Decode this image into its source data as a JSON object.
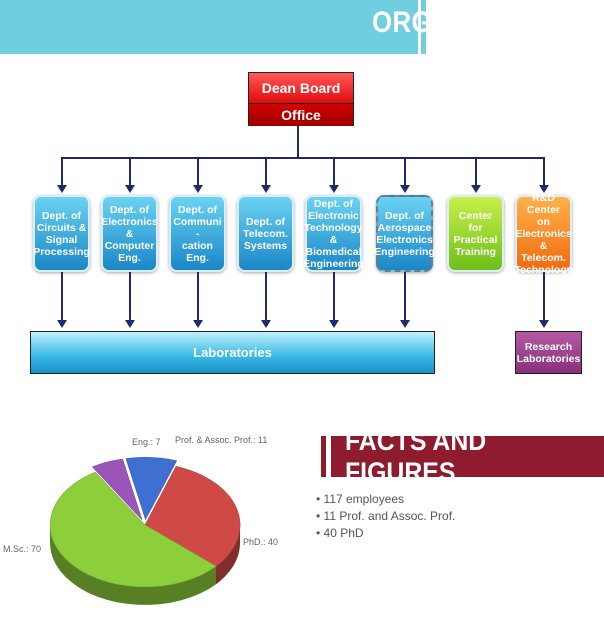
{
  "header": {
    "title": "ORGANIZATION"
  },
  "dean": {
    "top": "Dean Board",
    "bottom": "Office"
  },
  "departments": [
    {
      "label": "Dept. of\nCircuits &\nSignal\nProcessing",
      "color": "blue"
    },
    {
      "label": "Dept. of\nElectronics\n&\nComputer\nEng.",
      "color": "blue"
    },
    {
      "label": "Dept. of\nCommuni -\ncation Eng.",
      "color": "blue"
    },
    {
      "label": "Dept. of\nTelecom.\nSystems",
      "color": "blue"
    },
    {
      "label": "Dept. of\nElectronic\nTechnology\n& Biomedical\nEngineering",
      "color": "blue"
    },
    {
      "label": "Dept. of\nAerospace\nElectronics\nEngineering",
      "color": "blue"
    },
    {
      "label": "Center for\nPractical\nTraining",
      "color": "green"
    },
    {
      "label": "R&D Center\non\nElectronics &\nTelecom.\nTechnology",
      "color": "orange"
    }
  ],
  "laboratories": {
    "label": "Laboratories"
  },
  "research": {
    "label": "Research\nLaboratories"
  },
  "facts": {
    "title": "FACTS AND FIGURES",
    "items": [
      "117 employees",
      "11 Prof. and Assoc. Prof.",
      "40 PhD"
    ]
  },
  "chart_data": {
    "type": "pie",
    "slices": [
      {
        "label": "M.Sc.: 70",
        "name": "M.Sc.",
        "value": 70,
        "color": "#8ccf3a"
      },
      {
        "label": "PhD.: 40",
        "name": "PhD.",
        "value": 40,
        "color": "#cf4a46"
      },
      {
        "label": "Prof. & Assoc. Prof.: 11",
        "name": "Prof. & Assoc. Prof.",
        "value": 11,
        "color": "#3f6fd0"
      },
      {
        "label": "Eng.: 7",
        "name": "Eng.",
        "value": 7,
        "color": "#9a55b8"
      }
    ]
  }
}
